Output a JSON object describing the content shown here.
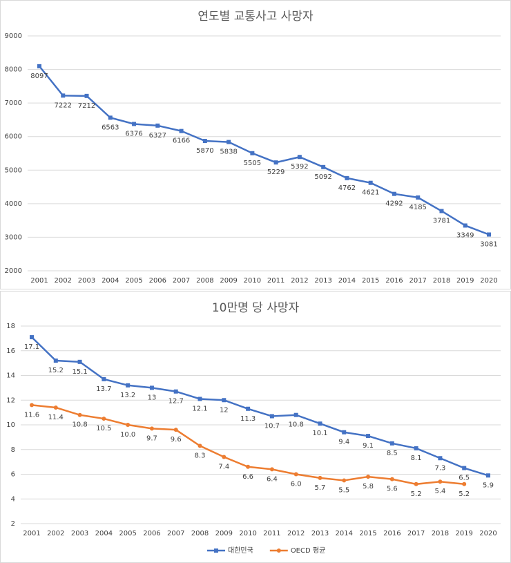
{
  "chart_data": [
    {
      "type": "line",
      "title": "연도별 교통사고 사망자",
      "categories": [
        "2001",
        "2002",
        "2003",
        "2004",
        "2005",
        "2006",
        "2007",
        "2008",
        "2009",
        "2010",
        "2011",
        "2012",
        "2013",
        "2014",
        "2015",
        "2016",
        "2017",
        "2018",
        "2019",
        "2020"
      ],
      "series": [
        {
          "color": "#4472c4",
          "marker": "square",
          "values": [
            8097,
            7222,
            7212,
            6563,
            6376,
            6327,
            6166,
            5870,
            5838,
            5505,
            5229,
            5392,
            5092,
            4762,
            4621,
            4292,
            4185,
            3781,
            3349,
            3081
          ]
        }
      ],
      "ylim": [
        2000,
        9000
      ],
      "yticks": [
        2000,
        3000,
        4000,
        5000,
        6000,
        7000,
        8000,
        9000
      ],
      "grid": true
    },
    {
      "type": "line",
      "title": "10만명 당 사망자",
      "categories": [
        "2001",
        "2002",
        "2003",
        "2004",
        "2005",
        "2006",
        "2007",
        "2008",
        "2009",
        "2010",
        "2011",
        "2012",
        "2013",
        "2014",
        "2015",
        "2016",
        "2017",
        "2018",
        "2019",
        "2020"
      ],
      "series": [
        {
          "name": "대한민국",
          "color": "#4472c4",
          "marker": "square",
          "values": [
            17.1,
            15.2,
            15.1,
            13.7,
            13.2,
            13,
            12.7,
            12.1,
            12,
            11.3,
            10.7,
            10.8,
            10.1,
            9.4,
            9.1,
            8.5,
            8.1,
            7.3,
            6.5,
            5.9
          ]
        },
        {
          "name": "OECD 평균",
          "color": "#ed7d31",
          "marker": "circle",
          "values": [
            11.6,
            11.4,
            10.8,
            10.5,
            10.0,
            9.7,
            9.6,
            8.3,
            7.4,
            6.6,
            6.4,
            6.0,
            5.7,
            5.5,
            5.8,
            5.6,
            5.2,
            5.4,
            5.2,
            null
          ],
          "value_labels": [
            "11.6",
            "11.4",
            "10.8",
            "10.5",
            "10.0",
            "9.7",
            "9.6",
            "8.3",
            "7.4",
            "6.6",
            "6.4",
            "6.0",
            "5.7",
            "5.5",
            "5.8",
            "5.6",
            "5.2",
            "5.4",
            "5.2",
            null
          ]
        }
      ],
      "ylim": [
        2,
        18
      ],
      "yticks": [
        2,
        4,
        6,
        8,
        10,
        12,
        14,
        16,
        18
      ],
      "grid": true,
      "legend": "bottom"
    }
  ]
}
